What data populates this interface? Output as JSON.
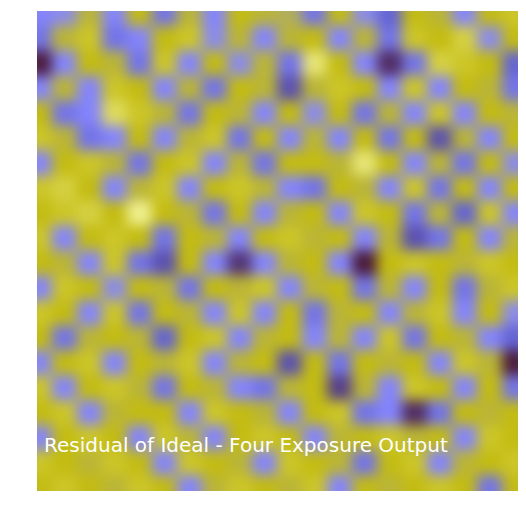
{
  "chart_data": {
    "type": "heatmap",
    "title": "Residual of Ideal - Four Exposure Output",
    "tick_labels": false,
    "cells": [
      [
        -0.4,
        -0.3,
        0.3,
        -0.4,
        0.4,
        -0.5,
        0.3,
        -0.4,
        0.4,
        0.3,
        0.2,
        -0.5,
        0.4,
        -0.3,
        -0.6,
        0.4,
        0.3,
        -0.4,
        0.4,
        0.5
      ],
      [
        -0.5,
        0.3,
        0.5,
        -0.5,
        -0.4,
        0.4,
        0.5,
        -0.3,
        0.3,
        -0.4,
        0.3,
        0.4,
        -0.4,
        0.3,
        -0.5,
        0.5,
        0.4,
        0.6,
        -0.3,
        0.4
      ],
      [
        -1.0,
        -0.4,
        0.4,
        0.3,
        -0.5,
        0.5,
        -0.4,
        0.4,
        -0.3,
        0.3,
        -0.5,
        0.8,
        0.4,
        -0.4,
        -0.9,
        -0.5,
        0.6,
        0.5,
        0.4,
        -0.6
      ],
      [
        -0.4,
        0.3,
        -0.4,
        0.5,
        0.4,
        -0.4,
        0.3,
        -0.5,
        0.4,
        0.3,
        -0.7,
        0.3,
        0.5,
        0.4,
        -0.4,
        0.5,
        -0.4,
        0.4,
        0.3,
        -0.5
      ],
      [
        0.4,
        -0.5,
        -0.4,
        0.7,
        0.5,
        0.3,
        -0.5,
        0.4,
        0.3,
        -0.4,
        0.4,
        -0.3,
        0.4,
        -0.5,
        0.3,
        -0.4,
        0.5,
        -0.4,
        0.4,
        0.3
      ],
      [
        0.5,
        0.3,
        -0.5,
        -0.4,
        0.4,
        -0.4,
        0.3,
        0.5,
        -0.5,
        0.4,
        -0.4,
        0.3,
        -0.4,
        0.4,
        -0.5,
        0.4,
        -0.7,
        0.3,
        -0.4,
        0.4
      ],
      [
        -0.4,
        0.4,
        0.5,
        0.3,
        -0.5,
        0.4,
        0.5,
        -0.4,
        0.3,
        -0.5,
        0.4,
        0.4,
        0.3,
        0.8,
        0.4,
        -0.4,
        0.3,
        -0.5,
        0.4,
        -0.3
      ],
      [
        0.5,
        0.6,
        0.4,
        -0.4,
        0.3,
        0.5,
        -0.4,
        0.4,
        0.5,
        0.3,
        -0.4,
        -0.5,
        0.4,
        0.3,
        -0.4,
        0.5,
        -0.5,
        0.4,
        -0.4,
        0.4
      ],
      [
        0.4,
        0.5,
        0.6,
        0.4,
        0.9,
        0.4,
        0.3,
        -0.5,
        0.4,
        -0.4,
        0.3,
        0.4,
        -0.4,
        0.5,
        0.4,
        -0.5,
        0.3,
        -0.6,
        0.5,
        -0.4
      ],
      [
        0.5,
        -0.4,
        0.4,
        0.5,
        0.4,
        -0.5,
        0.4,
        0.3,
        -0.4,
        0.4,
        0.5,
        0.3,
        0.4,
        -0.4,
        0.3,
        -0.7,
        -0.5,
        0.4,
        -0.4,
        0.3
      ],
      [
        0.4,
        0.3,
        -0.4,
        0.5,
        -0.5,
        -0.7,
        0.4,
        -0.4,
        -0.85,
        -0.4,
        0.3,
        0.4,
        -0.4,
        -1.0,
        0.4,
        0.5,
        0.4,
        0.3,
        0.5,
        0.4
      ],
      [
        -0.4,
        0.5,
        0.4,
        -0.3,
        0.4,
        0.3,
        -0.5,
        0.4,
        0.3,
        0.5,
        -0.4,
        0.3,
        0.4,
        -0.5,
        0.3,
        -0.4,
        0.4,
        -0.5,
        0.3,
        0.5
      ],
      [
        0.5,
        0.4,
        -0.4,
        0.5,
        -0.5,
        0.4,
        0.3,
        -0.4,
        0.5,
        -0.4,
        0.4,
        -0.5,
        0.3,
        0.4,
        -0.4,
        0.3,
        0.5,
        -0.4,
        0.4,
        -0.3
      ],
      [
        0.4,
        -0.5,
        0.3,
        0.4,
        0.3,
        -0.6,
        0.4,
        0.5,
        -0.4,
        0.3,
        0.4,
        -0.4,
        0.3,
        -0.4,
        0.5,
        -0.5,
        0.4,
        0.3,
        -0.4,
        -0.6
      ],
      [
        -0.4,
        0.4,
        0.5,
        -0.4,
        0.4,
        0.3,
        0.5,
        -0.4,
        0.3,
        0.4,
        -0.7,
        0.4,
        -0.5,
        0.4,
        0.3,
        0.4,
        -0.4,
        0.5,
        0.3,
        -1.0
      ],
      [
        0.5,
        -0.4,
        0.4,
        0.5,
        0.3,
        -0.5,
        0.4,
        0.3,
        -0.4,
        -0.5,
        0.3,
        0.4,
        -0.8,
        0.3,
        -0.4,
        0.5,
        0.4,
        -0.4,
        0.4,
        -0.5
      ],
      [
        0.4,
        0.5,
        -0.4,
        0.3,
        0.4,
        0.4,
        -0.4,
        0.5,
        0.4,
        0.3,
        -0.4,
        0.4,
        0.5,
        -0.5,
        -0.4,
        -0.9,
        -0.5,
        0.4,
        0.3,
        0.4
      ],
      [
        -0.4,
        0.4,
        0.5,
        0.4,
        -0.4,
        0.5,
        0.3,
        -0.4,
        0.4,
        0.5,
        0.4,
        -0.4,
        0.3,
        0.4,
        0.5,
        0.3,
        0.4,
        -0.4,
        0.5,
        0.4
      ],
      [
        0.5,
        0.4,
        0.3,
        0.5,
        0.4,
        -0.4,
        0.5,
        0.4,
        0.3,
        -0.4,
        0.5,
        0.4,
        0.3,
        -0.5,
        0.4,
        0.5,
        -0.4,
        0.3,
        0.4,
        0.5
      ],
      [
        0.4,
        0.5,
        0.4,
        0.3,
        0.5,
        0.4,
        -0.4,
        0.3,
        0.5,
        0.4,
        0.3,
        0.5,
        -0.4,
        0.4,
        0.3,
        0.4,
        0.5,
        0.4,
        -0.5,
        0.4
      ]
    ]
  }
}
